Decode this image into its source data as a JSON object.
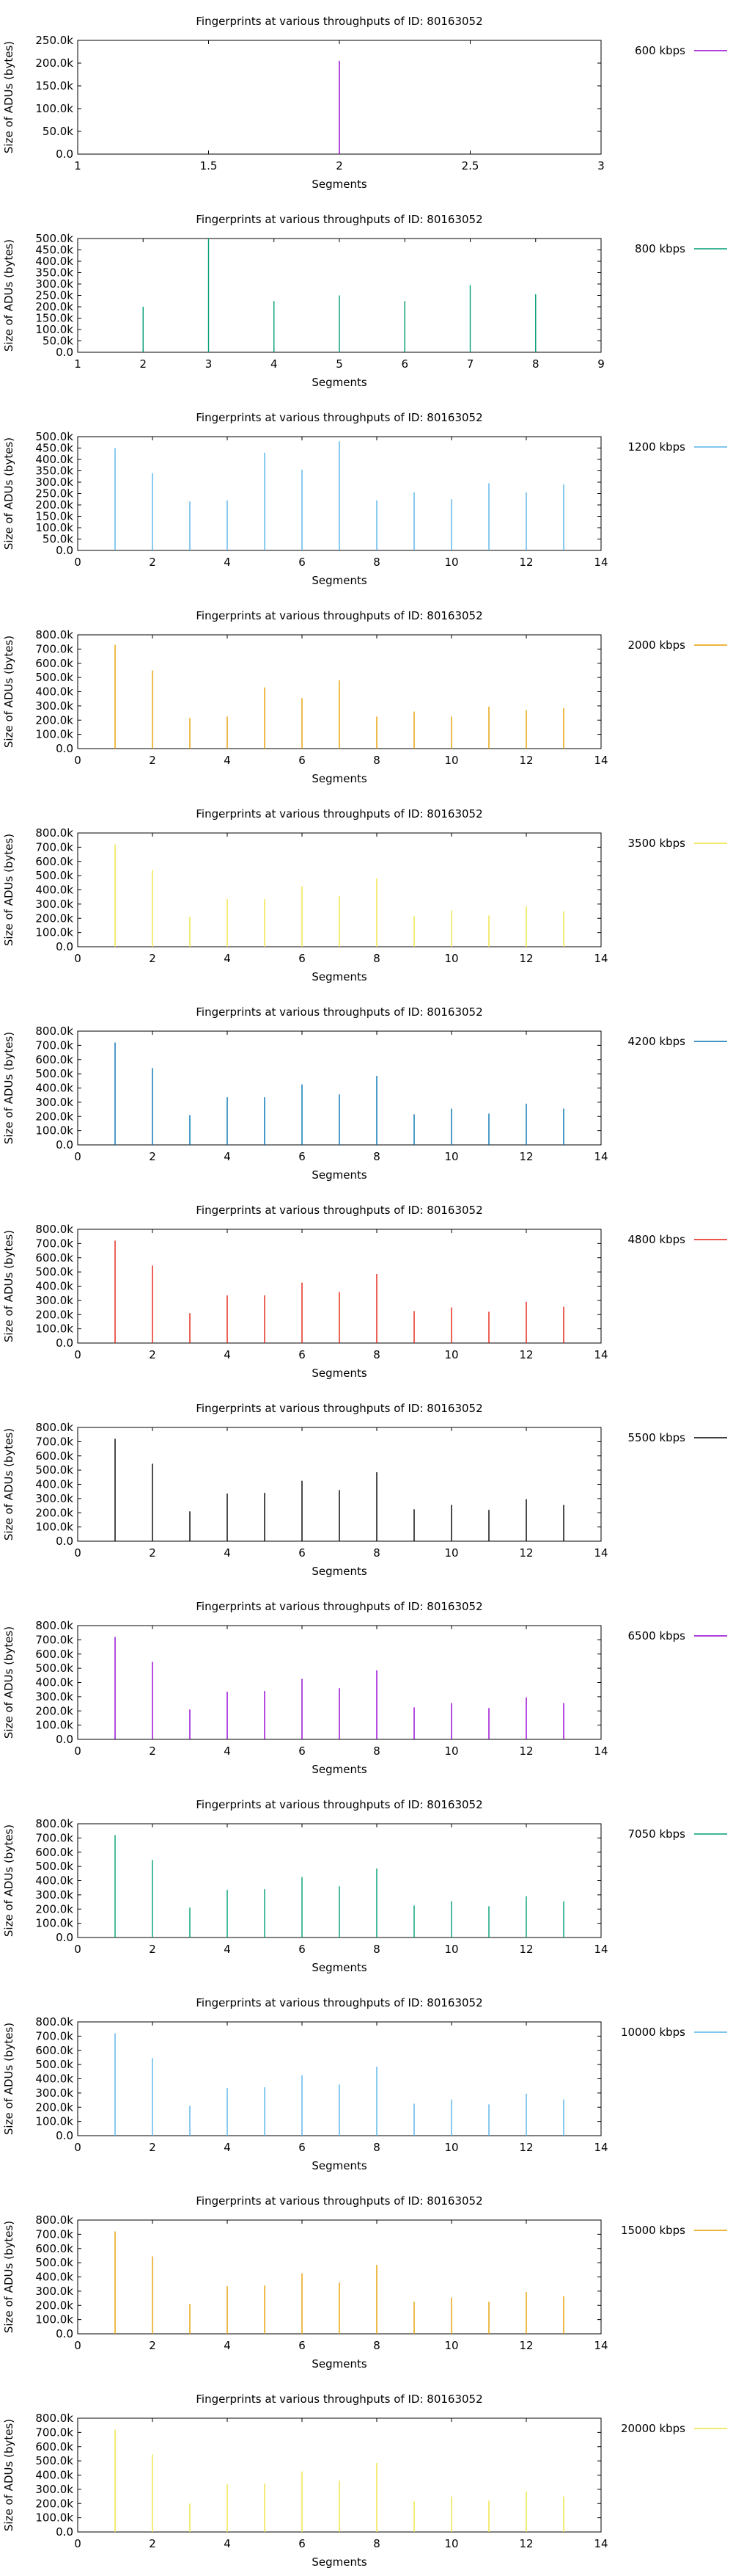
{
  "chart_data": [
    {
      "type": "bar",
      "title": "Fingerprints at various throughputs of ID: 80163052",
      "xlabel": "Segments",
      "ylabel": "Size of ADUs (bytes)",
      "xlim": [
        1,
        3
      ],
      "xticks": [
        1,
        1.5,
        2,
        2.5,
        3
      ],
      "ylim": [
        0,
        250000
      ],
      "yticks": [
        "0.0",
        "50.0k",
        "100.0k",
        "150.0k",
        "200.0k",
        "250.0k"
      ],
      "legend_position": "right",
      "grid": false,
      "series": [
        {
          "name": "600 kbps",
          "color": "#9400d3",
          "x": [
            2
          ],
          "values": [
            205000
          ]
        }
      ]
    },
    {
      "type": "bar",
      "title": "Fingerprints at various throughputs of ID: 80163052",
      "xlabel": "Segments",
      "ylabel": "Size of ADUs (bytes)",
      "xlim": [
        1,
        9
      ],
      "xticks": [
        1,
        2,
        3,
        4,
        5,
        6,
        7,
        8,
        9
      ],
      "ylim": [
        0,
        500000
      ],
      "yticks": [
        "0.0",
        "50.0k",
        "100.0k",
        "150.0k",
        "200.0k",
        "250.0k",
        "300.0k",
        "350.0k",
        "400.0k",
        "450.0k",
        "500.0k"
      ],
      "legend_position": "right",
      "grid": false,
      "series": [
        {
          "name": "800 kbps",
          "color": "#009e73",
          "x": [
            2,
            3,
            4,
            5,
            6,
            7,
            8
          ],
          "values": [
            200000,
            500000,
            225000,
            250000,
            225000,
            295000,
            255000
          ]
        }
      ]
    },
    {
      "type": "bar",
      "title": "Fingerprints at various throughputs of ID: 80163052",
      "xlabel": "Segments",
      "ylabel": "Size of ADUs (bytes)",
      "xlim": [
        0,
        14
      ],
      "xticks": [
        0,
        2,
        4,
        6,
        8,
        10,
        12,
        14
      ],
      "ylim": [
        0,
        500000
      ],
      "yticks": [
        "0.0",
        "50.0k",
        "100.0k",
        "150.0k",
        "200.0k",
        "250.0k",
        "300.0k",
        "350.0k",
        "400.0k",
        "450.0k",
        "500.0k"
      ],
      "legend_position": "right",
      "grid": false,
      "series": [
        {
          "name": "1200 kbps",
          "color": "#56b4e9",
          "x": [
            1,
            2,
            3,
            4,
            5,
            6,
            7,
            8,
            9,
            10,
            11,
            12,
            13
          ],
          "values": [
            450000,
            340000,
            215000,
            220000,
            430000,
            355000,
            480000,
            220000,
            255000,
            225000,
            295000,
            255000,
            290000
          ]
        }
      ]
    },
    {
      "type": "bar",
      "title": "Fingerprints at various throughputs of ID: 80163052",
      "xlabel": "Segments",
      "ylabel": "Size of ADUs (bytes)",
      "xlim": [
        0,
        14
      ],
      "xticks": [
        0,
        2,
        4,
        6,
        8,
        10,
        12,
        14
      ],
      "ylim": [
        0,
        800000
      ],
      "yticks": [
        "0.0",
        "100.0k",
        "200.0k",
        "300.0k",
        "400.0k",
        "500.0k",
        "600.0k",
        "700.0k",
        "800.0k"
      ],
      "legend_position": "right",
      "grid": false,
      "series": [
        {
          "name": "2000 kbps",
          "color": "#e69f00",
          "x": [
            1,
            2,
            3,
            4,
            5,
            6,
            7,
            8,
            9,
            10,
            11,
            12,
            13
          ],
          "values": [
            730000,
            550000,
            215000,
            225000,
            430000,
            355000,
            480000,
            225000,
            260000,
            225000,
            295000,
            270000,
            285000
          ]
        }
      ]
    },
    {
      "type": "bar",
      "title": "Fingerprints at various throughputs of ID: 80163052",
      "xlabel": "Segments",
      "ylabel": "Size of ADUs (bytes)",
      "xlim": [
        0,
        14
      ],
      "xticks": [
        0,
        2,
        4,
        6,
        8,
        10,
        12,
        14
      ],
      "ylim": [
        0,
        800000
      ],
      "yticks": [
        "0.0",
        "100.0k",
        "200.0k",
        "300.0k",
        "400.0k",
        "500.0k",
        "600.0k",
        "700.0k",
        "800.0k"
      ],
      "legend_position": "right",
      "grid": false,
      "series": [
        {
          "name": "3500 kbps",
          "color": "#f0e442",
          "x": [
            1,
            2,
            3,
            4,
            5,
            6,
            7,
            8,
            9,
            10,
            11,
            12,
            13
          ],
          "values": [
            720000,
            540000,
            210000,
            335000,
            335000,
            425000,
            355000,
            480000,
            215000,
            255000,
            220000,
            285000,
            250000
          ]
        }
      ]
    },
    {
      "type": "bar",
      "title": "Fingerprints at various throughputs of ID: 80163052",
      "xlabel": "Segments",
      "ylabel": "Size of ADUs (bytes)",
      "xlim": [
        0,
        14
      ],
      "xticks": [
        0,
        2,
        4,
        6,
        8,
        10,
        12,
        14
      ],
      "ylim": [
        0,
        800000
      ],
      "yticks": [
        "0.0",
        "100.0k",
        "200.0k",
        "300.0k",
        "400.0k",
        "500.0k",
        "600.0k",
        "700.0k",
        "800.0k"
      ],
      "legend_position": "right",
      "grid": false,
      "series": [
        {
          "name": "4200 kbps",
          "color": "#0072b2",
          "x": [
            1,
            2,
            3,
            4,
            5,
            6,
            7,
            8,
            9,
            10,
            11,
            12,
            13
          ],
          "values": [
            720000,
            540000,
            210000,
            335000,
            335000,
            425000,
            355000,
            485000,
            215000,
            255000,
            220000,
            290000,
            255000
          ]
        }
      ]
    },
    {
      "type": "bar",
      "title": "Fingerprints at various throughputs of ID: 80163052",
      "xlabel": "Segments",
      "ylabel": "Size of ADUs (bytes)",
      "xlim": [
        0,
        14
      ],
      "xticks": [
        0,
        2,
        4,
        6,
        8,
        10,
        12,
        14
      ],
      "ylim": [
        0,
        800000
      ],
      "yticks": [
        "0.0",
        "100.0k",
        "200.0k",
        "300.0k",
        "400.0k",
        "500.0k",
        "600.0k",
        "700.0k",
        "800.0k"
      ],
      "legend_position": "right",
      "grid": false,
      "series": [
        {
          "name": "4800 kbps",
          "color": "#e51e10",
          "x": [
            1,
            2,
            3,
            4,
            5,
            6,
            7,
            8,
            9,
            10,
            11,
            12,
            13
          ],
          "values": [
            720000,
            545000,
            210000,
            335000,
            335000,
            425000,
            360000,
            485000,
            225000,
            250000,
            220000,
            290000,
            255000
          ]
        }
      ]
    },
    {
      "type": "bar",
      "title": "Fingerprints at various throughputs of ID: 80163052",
      "xlabel": "Segments",
      "ylabel": "Size of ADUs (bytes)",
      "xlim": [
        0,
        14
      ],
      "xticks": [
        0,
        2,
        4,
        6,
        8,
        10,
        12,
        14
      ],
      "ylim": [
        0,
        800000
      ],
      "yticks": [
        "0.0",
        "100.0k",
        "200.0k",
        "300.0k",
        "400.0k",
        "500.0k",
        "600.0k",
        "700.0k",
        "800.0k"
      ],
      "legend_position": "right",
      "grid": false,
      "series": [
        {
          "name": "5500 kbps",
          "color": "#000000",
          "x": [
            1,
            2,
            3,
            4,
            5,
            6,
            7,
            8,
            9,
            10,
            11,
            12,
            13
          ],
          "values": [
            720000,
            545000,
            210000,
            335000,
            340000,
            425000,
            360000,
            485000,
            225000,
            255000,
            220000,
            295000,
            255000
          ]
        }
      ]
    },
    {
      "type": "bar",
      "title": "Fingerprints at various throughputs of ID: 80163052",
      "xlabel": "Segments",
      "ylabel": "Size of ADUs (bytes)",
      "xlim": [
        0,
        14
      ],
      "xticks": [
        0,
        2,
        4,
        6,
        8,
        10,
        12,
        14
      ],
      "ylim": [
        0,
        800000
      ],
      "yticks": [
        "0.0",
        "100.0k",
        "200.0k",
        "300.0k",
        "400.0k",
        "500.0k",
        "600.0k",
        "700.0k",
        "800.0k"
      ],
      "legend_position": "right",
      "grid": false,
      "series": [
        {
          "name": "6500 kbps",
          "color": "#9400d3",
          "x": [
            1,
            2,
            3,
            4,
            5,
            6,
            7,
            8,
            9,
            10,
            11,
            12,
            13
          ],
          "values": [
            720000,
            545000,
            210000,
            335000,
            340000,
            425000,
            360000,
            485000,
            225000,
            255000,
            220000,
            295000,
            255000
          ]
        }
      ]
    },
    {
      "type": "bar",
      "title": "Fingerprints at various throughputs of ID: 80163052",
      "xlabel": "Segments",
      "ylabel": "Size of ADUs (bytes)",
      "xlim": [
        0,
        14
      ],
      "xticks": [
        0,
        2,
        4,
        6,
        8,
        10,
        12,
        14
      ],
      "ylim": [
        0,
        800000
      ],
      "yticks": [
        "0.0",
        "100.0k",
        "200.0k",
        "300.0k",
        "400.0k",
        "500.0k",
        "600.0k",
        "700.0k",
        "800.0k"
      ],
      "legend_position": "right",
      "grid": false,
      "series": [
        {
          "name": "7050 kbps",
          "color": "#009e73",
          "x": [
            1,
            2,
            3,
            4,
            5,
            6,
            7,
            8,
            9,
            10,
            11,
            12,
            13
          ],
          "values": [
            720000,
            545000,
            210000,
            335000,
            340000,
            425000,
            360000,
            485000,
            225000,
            255000,
            220000,
            290000,
            255000
          ]
        }
      ]
    },
    {
      "type": "bar",
      "title": "Fingerprints at various throughputs of ID: 80163052",
      "xlabel": "Segments",
      "ylabel": "Size of ADUs (bytes)",
      "xlim": [
        0,
        14
      ],
      "xticks": [
        0,
        2,
        4,
        6,
        8,
        10,
        12,
        14
      ],
      "ylim": [
        0,
        800000
      ],
      "yticks": [
        "0.0",
        "100.0k",
        "200.0k",
        "300.0k",
        "400.0k",
        "500.0k",
        "600.0k",
        "700.0k",
        "800.0k"
      ],
      "legend_position": "right",
      "grid": false,
      "series": [
        {
          "name": "10000 kbps",
          "color": "#56b4e9",
          "x": [
            1,
            2,
            3,
            4,
            5,
            6,
            7,
            8,
            9,
            10,
            11,
            12,
            13
          ],
          "values": [
            720000,
            545000,
            210000,
            335000,
            340000,
            425000,
            360000,
            485000,
            225000,
            255000,
            220000,
            295000,
            255000
          ]
        }
      ]
    },
    {
      "type": "bar",
      "title": "Fingerprints at various throughputs of ID: 80163052",
      "xlabel": "Segments",
      "ylabel": "Size of ADUs (bytes)",
      "xlim": [
        0,
        14
      ],
      "xticks": [
        0,
        2,
        4,
        6,
        8,
        10,
        12,
        14
      ],
      "ylim": [
        0,
        800000
      ],
      "yticks": [
        "0.0",
        "100.0k",
        "200.0k",
        "300.0k",
        "400.0k",
        "500.0k",
        "600.0k",
        "700.0k",
        "800.0k"
      ],
      "legend_position": "right",
      "grid": false,
      "series": [
        {
          "name": "15000 kbps",
          "color": "#e69f00",
          "x": [
            1,
            2,
            3,
            4,
            5,
            6,
            7,
            8,
            9,
            10,
            11,
            12,
            13
          ],
          "values": [
            720000,
            545000,
            210000,
            335000,
            340000,
            425000,
            360000,
            485000,
            225000,
            255000,
            225000,
            295000,
            265000
          ]
        }
      ]
    },
    {
      "type": "bar",
      "title": "Fingerprints at various throughputs of ID: 80163052",
      "xlabel": "Segments",
      "ylabel": "Size of ADUs (bytes)",
      "xlim": [
        0,
        14
      ],
      "xticks": [
        0,
        2,
        4,
        6,
        8,
        10,
        12,
        14
      ],
      "ylim": [
        0,
        800000
      ],
      "yticks": [
        "0.0",
        "100.0k",
        "200.0k",
        "300.0k",
        "400.0k",
        "500.0k",
        "600.0k",
        "700.0k",
        "800.0k"
      ],
      "legend_position": "right",
      "grid": false,
      "series": [
        {
          "name": "20000 kbps",
          "color": "#f0e442",
          "x": [
            1,
            2,
            3,
            4,
            5,
            6,
            7,
            8,
            9,
            10,
            11,
            12,
            13
          ],
          "values": [
            720000,
            545000,
            200000,
            335000,
            340000,
            425000,
            360000,
            485000,
            215000,
            250000,
            220000,
            285000,
            250000
          ]
        }
      ]
    }
  ]
}
